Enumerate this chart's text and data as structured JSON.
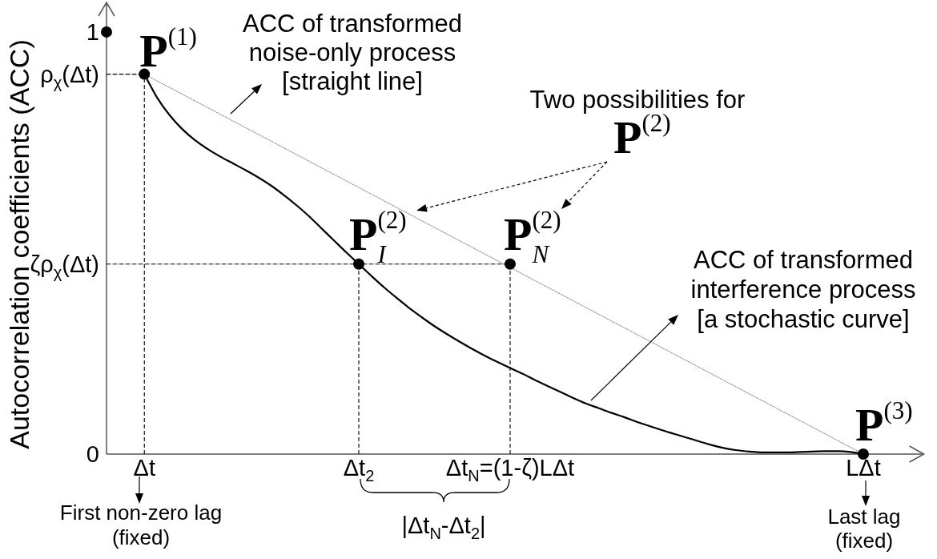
{
  "chart_data": {
    "type": "line",
    "ylabel": "Autocorrelation coefficients (ACC)",
    "categories": [
      null,
      null,
      null,
      "Δt",
      null,
      null,
      null,
      null,
      null,
      null,
      null,
      null,
      null,
      null,
      null,
      null,
      null,
      null,
      null,
      null,
      "Δt$_{2}$",
      null,
      null,
      null,
      null,
      null,
      null,
      null,
      null,
      null,
      null,
      null,
      "Δt$_{N}$=(1-ζ)LΔt",
      null,
      null,
      null,
      null,
      null,
      null,
      null,
      null,
      null,
      null,
      null,
      null,
      null,
      null,
      null,
      null,
      null,
      null,
      null,
      null,
      null,
      null,
      null,
      null,
      null,
      null,
      null,
      "LΔt",
      null,
      null,
      null,
      null
    ],
    "ylim": [
      0,
      1.07
    ],
    "yticks": [
      0,
      {
        "value": 0.45,
        "label": "ζρ$_{χ}$(Δt)"
      },
      {
        "value": 0.9,
        "label": "ρ$_{χ}$(Δt)"
      },
      1
    ],
    "series": [
      {
        "color": "#000000",
        "line_style": "solid",
        "values": [
          null,
          null,
          null,
          0.9,
          0.845,
          0.803,
          0.77,
          0.744,
          0.723,
          0.705,
          0.689,
          0.673,
          0.656,
          0.637,
          0.615,
          0.591,
          0.565,
          0.536,
          0.507,
          0.478,
          0.45,
          0.422,
          0.395,
          0.37,
          0.346,
          0.324,
          0.303,
          0.284,
          0.266,
          0.249,
          0.233,
          0.218,
          0.204,
          0.19,
          0.175,
          0.161,
          0.147,
          0.133,
          0.12,
          0.109,
          0.098,
          0.088,
          0.077,
          0.067,
          0.057,
          0.048,
          0.039,
          0.03,
          0.021,
          0.014,
          0.009,
          0.006,
          0.004,
          0.004,
          0.004,
          0.005,
          0.006,
          0.007,
          0.007,
          0.005,
          0,
          null,
          null,
          null,
          null
        ]
      },
      {
        "color": "#808080",
        "line_style": "dotted",
        "x": [
          "Δt",
          "LΔt"
        ],
        "values": [
          0.9,
          0
        ]
      },
      {
        "color": "#000000",
        "line_style": "dashed",
        "values": [
          0.9,
          0.9,
          0.9,
          0.9,
          null,
          null,
          null,
          null,
          null,
          null,
          null,
          null,
          null,
          null,
          null,
          null,
          null,
          null,
          null,
          null,
          null,
          null,
          null,
          null,
          null,
          null,
          null,
          null,
          null,
          null,
          null,
          null,
          null,
          null,
          null,
          null,
          null,
          null,
          null,
          null,
          null,
          null,
          null,
          null,
          null,
          null,
          null,
          null,
          null,
          null,
          null,
          null,
          null,
          null,
          null,
          null,
          null,
          null,
          null,
          null,
          null,
          null,
          null,
          null,
          null
        ]
      },
      {
        "color": "#000000",
        "line_style": "dashed",
        "values": [
          0.45,
          0.45,
          0.45,
          0.45,
          0.45,
          0.45,
          0.45,
          0.45,
          0.45,
          0.45,
          0.45,
          0.45,
          0.45,
          0.45,
          0.45,
          0.45,
          0.45,
          0.45,
          0.45,
          0.45,
          0.45,
          0.45,
          0.45,
          0.45,
          0.45,
          0.45,
          0.45,
          0.45,
          0.45,
          0.45,
          0.45,
          0.45,
          0.45,
          null,
          null,
          null,
          null,
          null,
          null,
          null,
          null,
          null,
          null,
          null,
          null,
          null,
          null,
          null,
          null,
          null,
          null,
          null,
          null,
          null,
          null,
          null,
          null,
          null,
          null,
          null,
          null,
          null,
          null,
          null,
          null
        ]
      },
      {
        "type": "lollipop",
        "color": "#000000",
        "marker": "circle",
        "line_style": "dashed",
        "values": [
          null,
          null,
          null,
          0.9,
          null,
          null,
          null,
          null,
          null,
          null,
          null,
          null,
          null,
          null,
          null,
          null,
          null,
          null,
          null,
          null,
          0.45,
          null,
          null,
          null,
          null,
          null,
          null,
          null,
          null,
          null,
          null,
          null,
          0.45,
          null,
          null,
          null,
          null,
          null,
          null,
          null,
          null,
          null,
          null,
          null,
          null,
          null,
          null,
          null,
          null,
          null,
          null,
          null,
          null,
          null,
          null,
          null,
          null,
          null,
          null,
          null,
          null,
          null,
          null,
          null,
          null
        ]
      },
      {
        "type": "scatter",
        "color": "#000000",
        "marker": "circle",
        "values": [
          1,
          null,
          null,
          null,
          null,
          null,
          null,
          null,
          null,
          null,
          null,
          null,
          null,
          null,
          null,
          null,
          null,
          null,
          null,
          null,
          null,
          null,
          null,
          null,
          null,
          null,
          null,
          null,
          null,
          null,
          null,
          null,
          null,
          null,
          null,
          null,
          null,
          null,
          null,
          null,
          null,
          null,
          null,
          null,
          null,
          null,
          null,
          null,
          null,
          null,
          null,
          null,
          null,
          null,
          null,
          null,
          null,
          null,
          null,
          null,
          0,
          null,
          null,
          null,
          null
        ]
      }
    ],
    "annotations": [
      "ACC of transformed\nnoise-only process\n[straight line]",
      "ACC of transformed\ninterference process\n[a stochastic curve]",
      "Two possibilities for",
      "P$^{(2)}$",
      {
        "text": "P$^{(1)}$",
        "x": "Δt",
        "y": 0.9
      },
      {
        "text": "P$_{I}$$^{(2)}$",
        "x": "Δt$_{2}$",
        "y": 0.45
      },
      {
        "text": "P$_{N}$$^{(2)}$",
        "x": "Δt$_{N}$=(1-ζ)LΔt",
        "y": 0.45
      },
      {
        "text": "P$^{(3)}$",
        "x": "LΔt",
        "y": 0
      },
      "First non-zero lag\n(fixed)",
      "Last lag\n(fixed)",
      "|Δt$_{N}$-Δt$_{2}$|"
    ]
  }
}
